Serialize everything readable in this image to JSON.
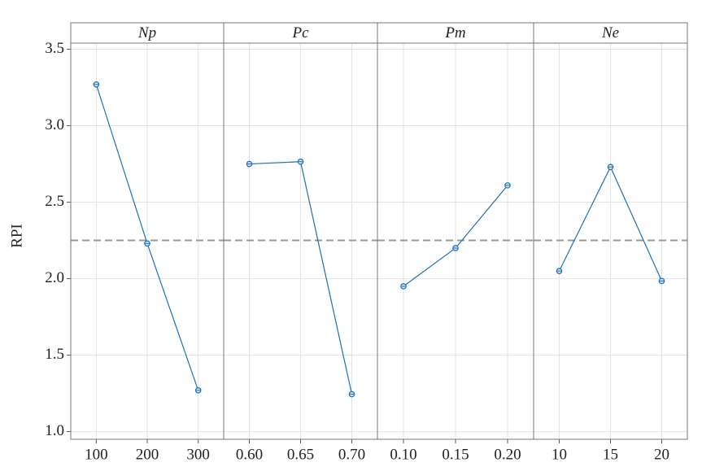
{
  "chart_data": [
    {
      "type": "line",
      "title": "Np",
      "y_label": "RPI",
      "categories": [
        "100",
        "200",
        "300"
      ],
      "values": [
        3.27,
        2.23,
        1.27
      ],
      "color": "#1f6fb4",
      "mean": 2.25,
      "ylim": [
        0.95,
        3.54
      ],
      "yticks": [
        {
          "value": 1,
          "label": "1.0"
        },
        1.5,
        {
          "value": 2,
          "label": "2.0"
        },
        2.5,
        {
          "value": 3,
          "label": "3.0"
        },
        3.5
      ],
      "grid": true
    },
    {
      "type": "line",
      "title": "Pc",
      "categories": [
        "0.60",
        "0.65",
        "0.70"
      ],
      "values": [
        2.75,
        2.765,
        1.245
      ],
      "color": "#1f6fb4",
      "mean": 2.25,
      "ylim": [
        0.95,
        3.54
      ],
      "yticks": [
        1,
        1.5,
        2,
        2.5,
        3,
        3.5
      ],
      "grid": true
    },
    {
      "type": "line",
      "title": "Pm",
      "categories": [
        "0.10",
        "0.15",
        "0.20"
      ],
      "values": [
        1.95,
        2.2,
        2.61
      ],
      "color": "#1f6fb4",
      "mean": 2.25,
      "ylim": [
        0.95,
        3.54
      ],
      "yticks": [
        1,
        1.5,
        2,
        2.5,
        3,
        3.5
      ],
      "grid": true
    },
    {
      "type": "line",
      "title": "Ne",
      "categories": [
        "10",
        "15",
        "20"
      ],
      "values": [
        2.05,
        2.73,
        1.985
      ],
      "color": "#1f6fb4",
      "mean": 2.25,
      "ylim": [
        0.95,
        3.54
      ],
      "yticks": [
        1,
        1.5,
        2,
        2.5,
        3,
        3.5
      ],
      "grid": true
    }
  ]
}
